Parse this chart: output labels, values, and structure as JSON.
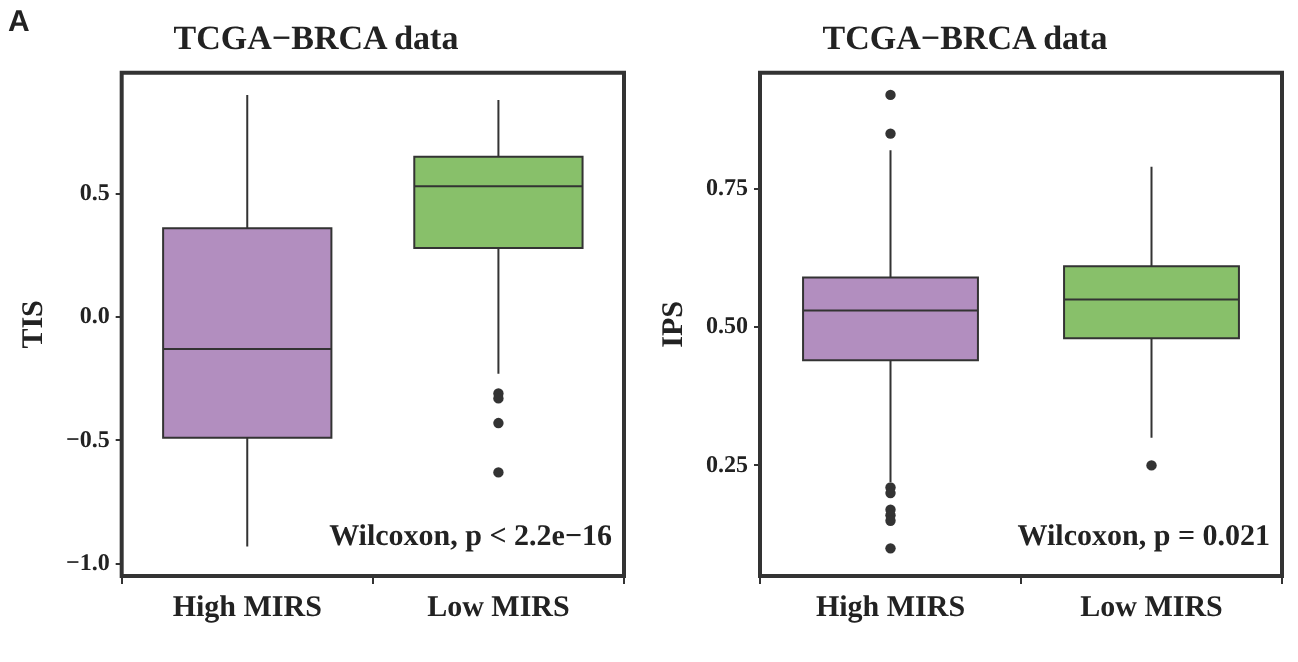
{
  "chart_data": [
    {
      "type": "box",
      "title": "TCGA−BRCA data",
      "ylabel": "TIS",
      "categories": [
        "High MIRS",
        "Low MIRS"
      ],
      "colors": [
        "#b28ebf",
        "#88c06a"
      ],
      "ylim": [
        -1.05,
        0.99
      ],
      "yticks": [
        {
          "value": -1,
          "label": "−1.0"
        },
        {
          "value": -0.5,
          "label": "−0.5"
        },
        {
          "value": 0,
          "label": "0.0"
        },
        0.5
      ],
      "annotations": [
        "Wilcoxon, p < 2.2e−16",
        "A"
      ],
      "boxes": [
        {
          "low": -0.93,
          "q1": -0.49,
          "median": -0.13,
          "q3": 0.36,
          "high": 0.9
        },
        {
          "low": -0.23,
          "q1": 0.28,
          "median": 0.53,
          "q3": 0.65,
          "high": 0.88,
          "outliers": [
            -0.31,
            -0.33,
            -0.43,
            -0.63
          ]
        }
      ]
    },
    {
      "type": "box",
      "title": "TCGA−BRCA data",
      "ylabel": "IPS",
      "categories": [
        "High MIRS",
        "Low MIRS"
      ],
      "colors": [
        "#b28ebf",
        "#88c06a"
      ],
      "ylim": [
        0.05,
        0.96
      ],
      "yticks": [
        0.25,
        {
          "value": 0.5,
          "label": "0.50"
        },
        0.75
      ],
      "annotations": [
        "Wilcoxon, p = 0.021"
      ],
      "boxes": [
        {
          "low": 0.22,
          "q1": 0.44,
          "median": 0.53,
          "q3": 0.59,
          "high": 0.82,
          "outliers": [
            0.92,
            0.85,
            0.21,
            0.2,
            0.17,
            0.16,
            0.15,
            0.1
          ]
        },
        {
          "low": 0.3,
          "q1": 0.48,
          "median": 0.55,
          "q3": 0.61,
          "high": 0.79,
          "outliers": [
            0.25
          ]
        }
      ]
    }
  ]
}
